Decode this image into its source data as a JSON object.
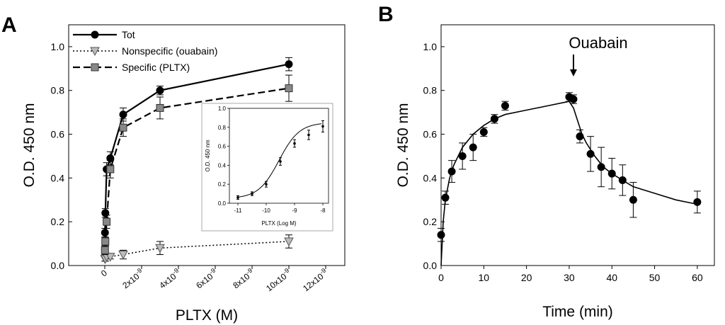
{
  "chart_data": [
    {
      "panel": "A",
      "type": "line",
      "xlabel": "PLTX (M)",
      "ylabel": "O.D. 450 nm",
      "xlim": [
        0,
        1.2e-08
      ],
      "ylim": [
        0,
        1.1
      ],
      "x_tick_labels": [
        "0",
        "2x10",
        "4x10",
        "6x10",
        "8x10",
        "10x10",
        "12x10"
      ],
      "x_tick_exponent": "-9",
      "x_tick_values": [
        0,
        2e-09,
        4e-09,
        6e-09,
        8e-09,
        1e-08,
        1.2e-08
      ],
      "y_ticks": [
        "0.0",
        "0.2",
        "0.4",
        "0.6",
        "0.8",
        "1.0"
      ],
      "y_tick_values": [
        0,
        0.2,
        0.4,
        0.6,
        0.8,
        1.0
      ],
      "legend_position": "top-left",
      "series": [
        {
          "name": "Tot",
          "style": "solid",
          "marker": "circle",
          "color": "#000000",
          "points": [
            {
              "x": 1e-11,
              "y": 0.15,
              "err": 0.02
            },
            {
              "x": 3e-11,
              "y": 0.24,
              "err": 0.02
            },
            {
              "x": 1e-10,
              "y": 0.44,
              "err": 0.03
            },
            {
              "x": 3e-10,
              "y": 0.49,
              "err": 0.03
            },
            {
              "x": 1e-09,
              "y": 0.69,
              "err": 0.03
            },
            {
              "x": 3e-09,
              "y": 0.8,
              "err": 0.02
            },
            {
              "x": 1e-08,
              "y": 0.92,
              "err": 0.03
            }
          ]
        },
        {
          "name": "Nonspecific (ouabain)",
          "style": "dotted",
          "marker": "triangle-down",
          "color": "#aaaaaa",
          "points": [
            {
              "x": 1e-11,
              "y": 0.03,
              "err": 0.01
            },
            {
              "x": 3e-11,
              "y": 0.03,
              "err": 0.01
            },
            {
              "x": 1e-10,
              "y": 0.04,
              "err": 0.01
            },
            {
              "x": 3e-10,
              "y": 0.04,
              "err": 0.01
            },
            {
              "x": 1e-09,
              "y": 0.05,
              "err": 0.02
            },
            {
              "x": 3e-09,
              "y": 0.08,
              "err": 0.03
            },
            {
              "x": 1e-08,
              "y": 0.11,
              "err": 0.03
            }
          ]
        },
        {
          "name": "Specific (PLTX)",
          "style": "dashed",
          "marker": "square",
          "color": "#888888",
          "points": [
            {
              "x": 1e-11,
              "y": 0.07,
              "err": 0.02
            },
            {
              "x": 3e-11,
              "y": 0.11,
              "err": 0.02
            },
            {
              "x": 1e-10,
              "y": 0.2,
              "err": 0.03
            },
            {
              "x": 3e-10,
              "y": 0.44,
              "err": 0.04
            },
            {
              "x": 1e-09,
              "y": 0.63,
              "err": 0.04
            },
            {
              "x": 3e-09,
              "y": 0.72,
              "err": 0.05
            },
            {
              "x": 1e-08,
              "y": 0.81,
              "err": 0.06
            }
          ]
        }
      ],
      "inset": {
        "type": "line",
        "xlabel": "PLTX (Log M)",
        "ylabel": "O.D. 450 nm",
        "xlim": [
          -11.3,
          -7.8
        ],
        "ylim": [
          0,
          1.0
        ],
        "x_ticks": [
          "-11",
          "-10",
          "-9",
          "-8"
        ],
        "x_tick_values": [
          -11,
          -10,
          -9,
          -8
        ],
        "y_ticks": [
          "0.0",
          "0.2",
          "0.4",
          "0.6",
          "0.8",
          "1.0"
        ],
        "y_tick_values": [
          0,
          0.2,
          0.4,
          0.6,
          0.8,
          1.0
        ],
        "points": [
          {
            "x": -11,
            "y": 0.06,
            "err": 0.02
          },
          {
            "x": -10.5,
            "y": 0.1,
            "err": 0.02
          },
          {
            "x": -10,
            "y": 0.2,
            "err": 0.03
          },
          {
            "x": -9.5,
            "y": 0.44,
            "err": 0.04
          },
          {
            "x": -9,
            "y": 0.63,
            "err": 0.04
          },
          {
            "x": -8.5,
            "y": 0.72,
            "err": 0.05
          },
          {
            "x": -8,
            "y": 0.81,
            "err": 0.06
          }
        ]
      }
    },
    {
      "panel": "B",
      "type": "line",
      "xlabel": "Time (min)",
      "ylabel": "O.D. 450 nm",
      "xlim": [
        0,
        64
      ],
      "ylim": [
        0,
        1.1
      ],
      "x_ticks": [
        "0",
        "10",
        "20",
        "30",
        "40",
        "50",
        "60"
      ],
      "x_tick_values": [
        0,
        10,
        20,
        30,
        40,
        50,
        60
      ],
      "y_ticks": [
        "0.0",
        "0.2",
        "0.4",
        "0.6",
        "0.8",
        "1.0"
      ],
      "y_tick_values": [
        0,
        0.2,
        0.4,
        0.6,
        0.8,
        1.0
      ],
      "annotation": {
        "text": "Ouabain",
        "x": 31
      },
      "series": [
        {
          "marker": "circle",
          "color": "#000000",
          "points": [
            {
              "x": 0,
              "y": 0.14,
              "err": 0.03
            },
            {
              "x": 1,
              "y": 0.31,
              "err": 0.03
            },
            {
              "x": 2.5,
              "y": 0.43,
              "err": 0.05
            },
            {
              "x": 5,
              "y": 0.5,
              "err": 0.06
            },
            {
              "x": 7.5,
              "y": 0.54,
              "err": 0.06
            },
            {
              "x": 10,
              "y": 0.61,
              "err": 0.02
            },
            {
              "x": 12.5,
              "y": 0.67,
              "err": 0.02
            },
            {
              "x": 15,
              "y": 0.73,
              "err": 0.02
            },
            {
              "x": 30,
              "y": 0.77,
              "err": 0.02
            },
            {
              "x": 31,
              "y": 0.76,
              "err": 0.02
            },
            {
              "x": 32.5,
              "y": 0.59,
              "err": 0.03
            },
            {
              "x": 35,
              "y": 0.51,
              "err": 0.08
            },
            {
              "x": 37.5,
              "y": 0.45,
              "err": 0.09
            },
            {
              "x": 40,
              "y": 0.42,
              "err": 0.07
            },
            {
              "x": 42.5,
              "y": 0.39,
              "err": 0.07
            },
            {
              "x": 45,
              "y": 0.3,
              "err": 0.08
            },
            {
              "x": 60,
              "y": 0.29,
              "err": 0.05
            }
          ],
          "fit": [
            [
              0,
              0.0
            ],
            [
              0.5,
              0.2
            ],
            [
              1,
              0.3
            ],
            [
              2,
              0.4
            ],
            [
              3,
              0.46
            ],
            [
              5,
              0.54
            ],
            [
              7.5,
              0.6
            ],
            [
              10,
              0.64
            ],
            [
              12.5,
              0.67
            ],
            [
              15,
              0.69
            ],
            [
              20,
              0.71
            ],
            [
              25,
              0.73
            ],
            [
              30,
              0.75
            ],
            [
              31,
              0.72
            ],
            [
              32,
              0.66
            ],
            [
              33,
              0.6
            ],
            [
              34,
              0.56
            ],
            [
              36,
              0.5
            ],
            [
              38,
              0.45
            ],
            [
              40,
              0.42
            ],
            [
              42.5,
              0.39
            ],
            [
              45,
              0.36
            ],
            [
              50,
              0.33
            ],
            [
              55,
              0.3
            ],
            [
              60,
              0.28
            ]
          ]
        }
      ]
    }
  ]
}
